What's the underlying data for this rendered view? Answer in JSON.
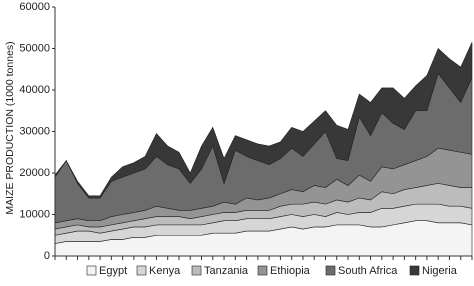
{
  "chart_data": {
    "type": "stacked_area",
    "y_label": "MAIZE PRODUCTION (1000 tonnes)",
    "categories": [
      null,
      null,
      null,
      null,
      null,
      null,
      null,
      null,
      null,
      null,
      null,
      null,
      null,
      null,
      null,
      null,
      null,
      null,
      null,
      null,
      null,
      null,
      null,
      null,
      null,
      null,
      null,
      null,
      null,
      null,
      null,
      null,
      null,
      null,
      null,
      null,
      null,
      null
    ],
    "series": [
      {
        "name": "Egypt",
        "color": "#f4f4f4",
        "values": [
          3000,
          3500,
          3500,
          3500,
          3500,
          4000,
          4000,
          4500,
          4500,
          5000,
          5000,
          5000,
          5000,
          5000,
          5500,
          5500,
          5500,
          6000,
          6000,
          6000,
          6500,
          7000,
          6500,
          7000,
          7000,
          7500,
          7500,
          7500,
          7000,
          7000,
          7500,
          8000,
          8500,
          8500,
          8000,
          8000,
          8000,
          7500
        ]
      },
      {
        "name": "Kenya",
        "color": "#d6d6d6",
        "values": [
          2000,
          2000,
          2500,
          2500,
          2000,
          2000,
          2500,
          2500,
          2500,
          2500,
          2500,
          2500,
          2500,
          2500,
          2500,
          3000,
          3000,
          3000,
          3000,
          3000,
          3000,
          3000,
          3000,
          3000,
          2500,
          3000,
          2500,
          3000,
          3500,
          4500,
          4000,
          4000,
          4000,
          4000,
          4500,
          4000,
          4000,
          4000
        ]
      },
      {
        "name": "Tanzania",
        "color": "#bcbcbc",
        "values": [
          1500,
          1500,
          1500,
          1000,
          1500,
          1500,
          1500,
          1500,
          2000,
          2000,
          2000,
          2000,
          1500,
          2000,
          2000,
          2000,
          2000,
          2000,
          2000,
          2000,
          2500,
          2500,
          3000,
          3000,
          3000,
          3000,
          3000,
          3500,
          3000,
          4000,
          3500,
          4000,
          4000,
          4500,
          5000,
          5000,
          4500,
          5000
        ]
      },
      {
        "name": "Ethiopia",
        "color": "#949494",
        "values": [
          1500,
          1500,
          1500,
          1500,
          1500,
          2000,
          2000,
          2000,
          2000,
          2500,
          2000,
          1500,
          2000,
          2000,
          2000,
          2500,
          2000,
          3000,
          2500,
          3000,
          3000,
          3500,
          3000,
          4000,
          4000,
          5000,
          4000,
          5500,
          4500,
          6000,
          6000,
          6000,
          6500,
          7000,
          8500,
          8500,
          8500,
          8000
        ]
      },
      {
        "name": "South Africa",
        "color": "#6c6c6c",
        "values": [
          11000,
          14500,
          8500,
          5500,
          5500,
          8500,
          9000,
          9500,
          10000,
          12000,
          10500,
          10000,
          6500,
          9500,
          14500,
          4500,
          13000,
          10000,
          9500,
          8000,
          8500,
          10000,
          8500,
          10000,
          13500,
          5000,
          6000,
          14000,
          11000,
          13000,
          11000,
          8500,
          12000,
          11000,
          18000,
          15000,
          12000,
          18500
        ]
      },
      {
        "name": "Nigeria",
        "color": "#383838",
        "values": [
          500,
          0,
          500,
          500,
          500,
          1000,
          2500,
          2500,
          3000,
          5500,
          4500,
          4000,
          2500,
          5500,
          4500,
          6000,
          3500,
          4000,
          4000,
          4500,
          4000,
          5000,
          6000,
          5500,
          5000,
          8000,
          7500,
          5500,
          8000,
          6000,
          8500,
          7500,
          6000,
          8500,
          6000,
          7000,
          8500,
          8500
        ]
      }
    ],
    "ylim": [
      0,
      60000
    ],
    "yticks": [
      0,
      10000,
      20000,
      30000,
      40000,
      50000,
      60000
    ]
  }
}
